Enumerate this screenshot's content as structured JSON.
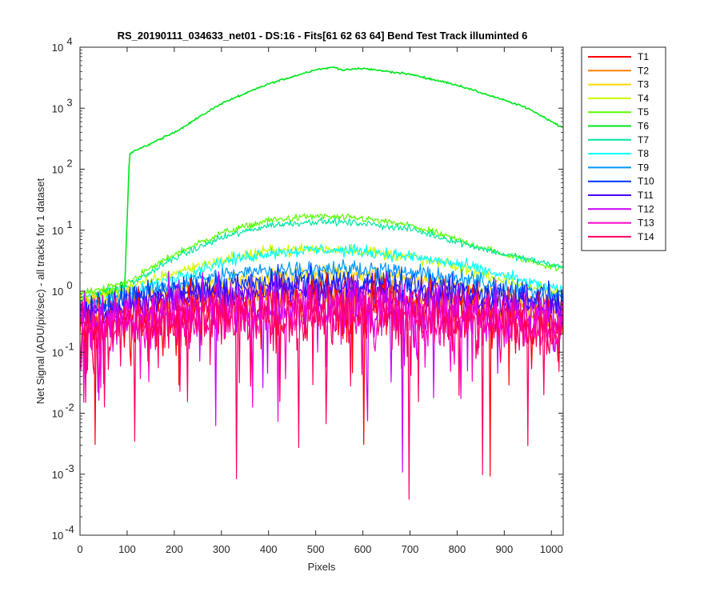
{
  "chart_data": {
    "type": "line",
    "title": "RS_20190111_034633_net01 - DS:16 - Fits[61  62  63  64]    Bend Test        Track illuminted 6",
    "xlabel": "Pixels",
    "ylabel": "Net Signal (ADU/pix/sec) - all tracks for 1 dataset",
    "xlim": [
      0,
      1025
    ],
    "ylim": [
      0.0001,
      10000
    ],
    "yscale": "log",
    "x_ticks": [
      0,
      100,
      200,
      300,
      400,
      500,
      600,
      700,
      800,
      900,
      1000
    ],
    "x_tick_labels": [
      "0",
      "100",
      "200",
      "300",
      "400",
      "500",
      "600",
      "700",
      "800",
      "900",
      "1000"
    ],
    "y_ticks": [
      0.0001,
      0.001,
      0.01,
      0.1,
      1,
      10,
      100,
      1000,
      10000
    ],
    "y_tick_labels": [
      {
        "base": "10",
        "exp": "-4"
      },
      {
        "base": "10",
        "exp": "-3"
      },
      {
        "base": "10",
        "exp": "-2"
      },
      {
        "base": "10",
        "exp": "-1"
      },
      {
        "base": "10",
        "exp": "0"
      },
      {
        "base": "10",
        "exp": "1"
      },
      {
        "base": "10",
        "exp": "2"
      },
      {
        "base": "10",
        "exp": "3"
      },
      {
        "base": "10",
        "exp": "4"
      }
    ],
    "grid": false,
    "legend": "outside-top-right",
    "series": [
      {
        "name": "T1",
        "color": "#ff0000",
        "x": [
          0,
          100,
          200,
          300,
          400,
          500,
          600,
          700,
          800,
          900,
          1024
        ],
        "y": [
          0.2,
          0.35,
          0.5,
          0.6,
          0.7,
          0.75,
          0.72,
          0.65,
          0.55,
          0.4,
          0.3
        ]
      },
      {
        "name": "T2",
        "color": "#ff8000",
        "x": [
          0,
          100,
          200,
          300,
          400,
          500,
          600,
          700,
          800,
          900,
          1024
        ],
        "y": [
          0.35,
          0.5,
          0.65,
          0.8,
          0.9,
          0.95,
          0.9,
          0.8,
          0.7,
          0.55,
          0.45
        ]
      },
      {
        "name": "T3",
        "color": "#ffd700",
        "x": [
          0,
          100,
          200,
          300,
          400,
          500,
          600,
          700,
          800,
          900,
          1024
        ],
        "y": [
          0.6,
          0.8,
          1.0,
          1.3,
          1.7,
          2.0,
          1.9,
          1.6,
          1.2,
          0.9,
          0.6
        ]
      },
      {
        "name": "T4",
        "color": "#c8ff00",
        "x": [
          0,
          100,
          200,
          300,
          400,
          500,
          600,
          700,
          800,
          900,
          1024
        ],
        "y": [
          0.7,
          1.1,
          2.0,
          3.2,
          4.5,
          5.0,
          4.6,
          3.6,
          2.5,
          1.5,
          0.9
        ]
      },
      {
        "name": "T5",
        "color": "#5aff00",
        "x": [
          0,
          100,
          200,
          300,
          400,
          500,
          600,
          700,
          800,
          900,
          1024
        ],
        "y": [
          0.9,
          1.4,
          4.0,
          9.0,
          14.5,
          17.0,
          15.5,
          12.0,
          7.0,
          4.0,
          2.3
        ]
      },
      {
        "name": "T6",
        "color": "#00e81c",
        "x": [
          0,
          60,
          95,
          105,
          200,
          300,
          400,
          500,
          540,
          560,
          600,
          700,
          800,
          900,
          950,
          1024
        ],
        "y": [
          0.7,
          0.9,
          1.2,
          180,
          400,
          1200,
          2500,
          4300,
          4700,
          4200,
          4500,
          3600,
          2400,
          1350,
          1000,
          480
        ]
      },
      {
        "name": "T7",
        "color": "#00e8a0",
        "x": [
          0,
          100,
          200,
          300,
          400,
          500,
          600,
          700,
          800,
          900,
          1024
        ],
        "y": [
          0.8,
          1.2,
          3.5,
          7.5,
          12.0,
          14.0,
          13.0,
          10.5,
          6.5,
          4.0,
          2.5
        ]
      },
      {
        "name": "T8",
        "color": "#00ffff",
        "x": [
          0,
          100,
          200,
          300,
          400,
          500,
          600,
          700,
          800,
          900,
          1024
        ],
        "y": [
          0.6,
          0.9,
          1.7,
          3.0,
          4.3,
          4.8,
          4.5,
          3.7,
          2.8,
          1.8,
          1.0
        ]
      },
      {
        "name": "T9",
        "color": "#0096ff",
        "x": [
          0,
          100,
          200,
          300,
          400,
          500,
          600,
          700,
          800,
          900,
          1024
        ],
        "y": [
          0.5,
          0.8,
          1.3,
          1.8,
          2.2,
          2.4,
          2.3,
          2.0,
          1.6,
          1.2,
          0.8
        ]
      },
      {
        "name": "T10",
        "color": "#0032ff",
        "x": [
          0,
          100,
          200,
          300,
          400,
          500,
          600,
          700,
          800,
          900,
          1024
        ],
        "y": [
          0.5,
          0.7,
          1.0,
          1.2,
          1.35,
          1.4,
          1.35,
          1.25,
          1.1,
          0.9,
          0.7
        ]
      },
      {
        "name": "T11",
        "color": "#4b00ff",
        "x": [
          0,
          100,
          200,
          300,
          400,
          500,
          600,
          700,
          800,
          900,
          1024
        ],
        "y": [
          0.4,
          0.6,
          0.8,
          0.95,
          1.05,
          1.1,
          1.05,
          0.95,
          0.85,
          0.7,
          0.55
        ]
      },
      {
        "name": "T12",
        "color": "#c800ff",
        "x": [
          0,
          100,
          200,
          300,
          400,
          500,
          600,
          700,
          800,
          900,
          1024
        ],
        "y": [
          0.3,
          0.4,
          0.5,
          0.55,
          0.6,
          0.6,
          0.58,
          0.55,
          0.5,
          0.45,
          0.35
        ]
      },
      {
        "name": "T13",
        "color": "#ff00c8",
        "x": [
          0,
          100,
          200,
          300,
          400,
          500,
          600,
          700,
          800,
          900,
          1024
        ],
        "y": [
          0.2,
          0.3,
          0.35,
          0.4,
          0.42,
          0.45,
          0.42,
          0.4,
          0.35,
          0.3,
          0.25
        ]
      },
      {
        "name": "T14",
        "color": "#ff0064",
        "x": [
          0,
          100,
          200,
          300,
          400,
          500,
          600,
          700,
          800,
          900,
          1024
        ],
        "y": [
          0.2,
          0.28,
          0.32,
          0.36,
          0.4,
          0.42,
          0.4,
          0.36,
          0.32,
          0.28,
          0.22
        ]
      }
    ]
  }
}
